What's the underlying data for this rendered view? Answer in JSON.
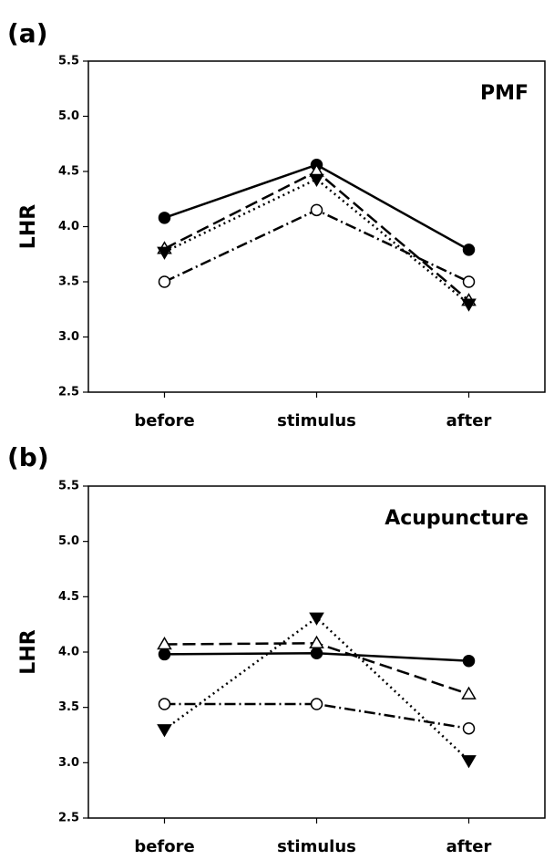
{
  "chart_data": [
    {
      "type": "line",
      "panel": "(a)",
      "annotation": "PMF",
      "ylabel": "LHR",
      "categories": [
        "before",
        "stimulus",
        "after"
      ],
      "ylim": [
        2.5,
        5.5
      ],
      "yticks": [
        {
          "value": 2.5,
          "label": "2.5"
        },
        {
          "value": 3,
          "label": "3.0"
        },
        {
          "value": 3.5,
          "label": "3.5"
        },
        {
          "value": 4,
          "label": "4.0"
        },
        {
          "value": 4.5,
          "label": "4.5"
        },
        {
          "value": 5,
          "label": "5.0"
        },
        {
          "value": 5.5,
          "label": "5.5"
        }
      ],
      "series": [
        {
          "color": "#000000",
          "marker": "circle-filled",
          "line": "solid",
          "values": [
            4.08,
            4.56,
            3.79
          ]
        },
        {
          "color": "#000000",
          "marker": "triangle-up-open",
          "line": "dashed",
          "values": [
            3.8,
            4.5,
            3.33
          ]
        },
        {
          "color": "#000000",
          "marker": "triangle-down-filled",
          "line": "dotted",
          "values": [
            3.77,
            4.43,
            3.3
          ]
        },
        {
          "color": "#000000",
          "marker": "circle-open",
          "line": "dashdot",
          "values": [
            3.5,
            4.15,
            3.5
          ]
        }
      ]
    },
    {
      "type": "line",
      "panel": "(b)",
      "annotation": "Acupuncture",
      "ylabel": "LHR",
      "categories": [
        "before",
        "stimulus",
        "after"
      ],
      "ylim": [
        2.5,
        5.5
      ],
      "yticks": [
        {
          "value": 2.5,
          "label": "2.5"
        },
        {
          "value": 3,
          "label": "3.0"
        },
        {
          "value": 3.5,
          "label": "3.5"
        },
        {
          "value": 4,
          "label": "4.0"
        },
        {
          "value": 4.5,
          "label": "4.5"
        },
        {
          "value": 5,
          "label": "5.0"
        },
        {
          "value": 5.5,
          "label": "5.5"
        }
      ],
      "series": [
        {
          "color": "#000000",
          "marker": "circle-filled",
          "line": "solid",
          "values": [
            3.98,
            3.99,
            3.92
          ]
        },
        {
          "color": "#000000",
          "marker": "triangle-up-open",
          "line": "dashed",
          "values": [
            4.07,
            4.08,
            3.62
          ]
        },
        {
          "color": "#000000",
          "marker": "triangle-down-filled",
          "line": "dotted",
          "values": [
            3.3,
            4.31,
            3.02
          ]
        },
        {
          "color": "#000000",
          "marker": "circle-open",
          "line": "dashdot",
          "values": [
            3.53,
            3.53,
            3.31
          ]
        }
      ]
    }
  ]
}
